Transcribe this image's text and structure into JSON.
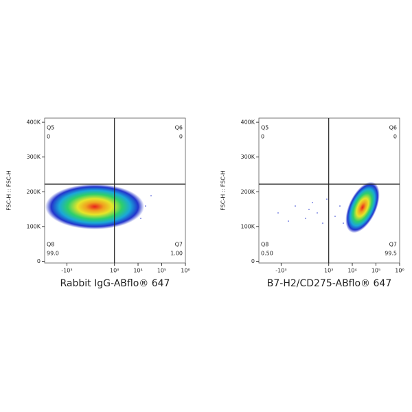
{
  "chart_data": [
    {
      "type": "scatter",
      "x_label": "Rabbit IgG-ABflo® 647",
      "y_label": "FSC-H :: FSC-H",
      "xscale": "biexponential",
      "xlim": [
        -8800,
        1000000
      ],
      "xticks": [
        {
          "value": -1000,
          "label": "-10³"
        },
        {
          "value": 1000,
          "label": "10³"
        },
        {
          "value": 10000,
          "label": "10⁴"
        },
        {
          "value": 100000,
          "label": "10⁵"
        },
        {
          "value": 1000000,
          "label": "10⁶"
        }
      ],
      "ylim": [
        -5000,
        412000
      ],
      "yticks": [
        0,
        {
          "value": 100000,
          "label": "100K"
        },
        {
          "value": 200000,
          "label": "200K"
        },
        {
          "value": 300000,
          "label": "300K"
        },
        {
          "value": 400000,
          "label": "400K"
        }
      ],
      "gate_x": 1000,
      "gate_y": 222000,
      "categories": [
        "Q5",
        "Q6",
        "Q7",
        "Q8"
      ],
      "values": [
        0,
        0,
        1,
        99
      ],
      "value_labels": [
        "0",
        "0",
        "1.00",
        "99.0"
      ]
    },
    {
      "type": "scatter",
      "x_label": "B7-H2/CD275-ABflo® 647",
      "y_label": "FSC-H :: FSC-H",
      "xscale": "biexponential",
      "xlim": [
        -8800,
        1000000
      ],
      "xticks": [
        {
          "value": -1000,
          "label": "-10³"
        },
        {
          "value": 1000,
          "label": "10³"
        },
        {
          "value": 10000,
          "label": "10⁴"
        },
        {
          "value": 100000,
          "label": "10⁵"
        },
        {
          "value": 1000000,
          "label": "10⁶"
        }
      ],
      "ylim": [
        -5000,
        412000
      ],
      "yticks": [
        0,
        {
          "value": 100000,
          "label": "100K"
        },
        {
          "value": 200000,
          "label": "200K"
        },
        {
          "value": 300000,
          "label": "300K"
        },
        {
          "value": 400000,
          "label": "400K"
        }
      ],
      "gate_x": 1000,
      "gate_y": 222000,
      "categories": [
        "Q5",
        "Q6",
        "Q7",
        "Q8"
      ],
      "values": [
        0,
        0,
        99.5,
        0.5
      ],
      "value_labels": [
        "0",
        "0",
        "99.5",
        "0.50"
      ]
    }
  ]
}
